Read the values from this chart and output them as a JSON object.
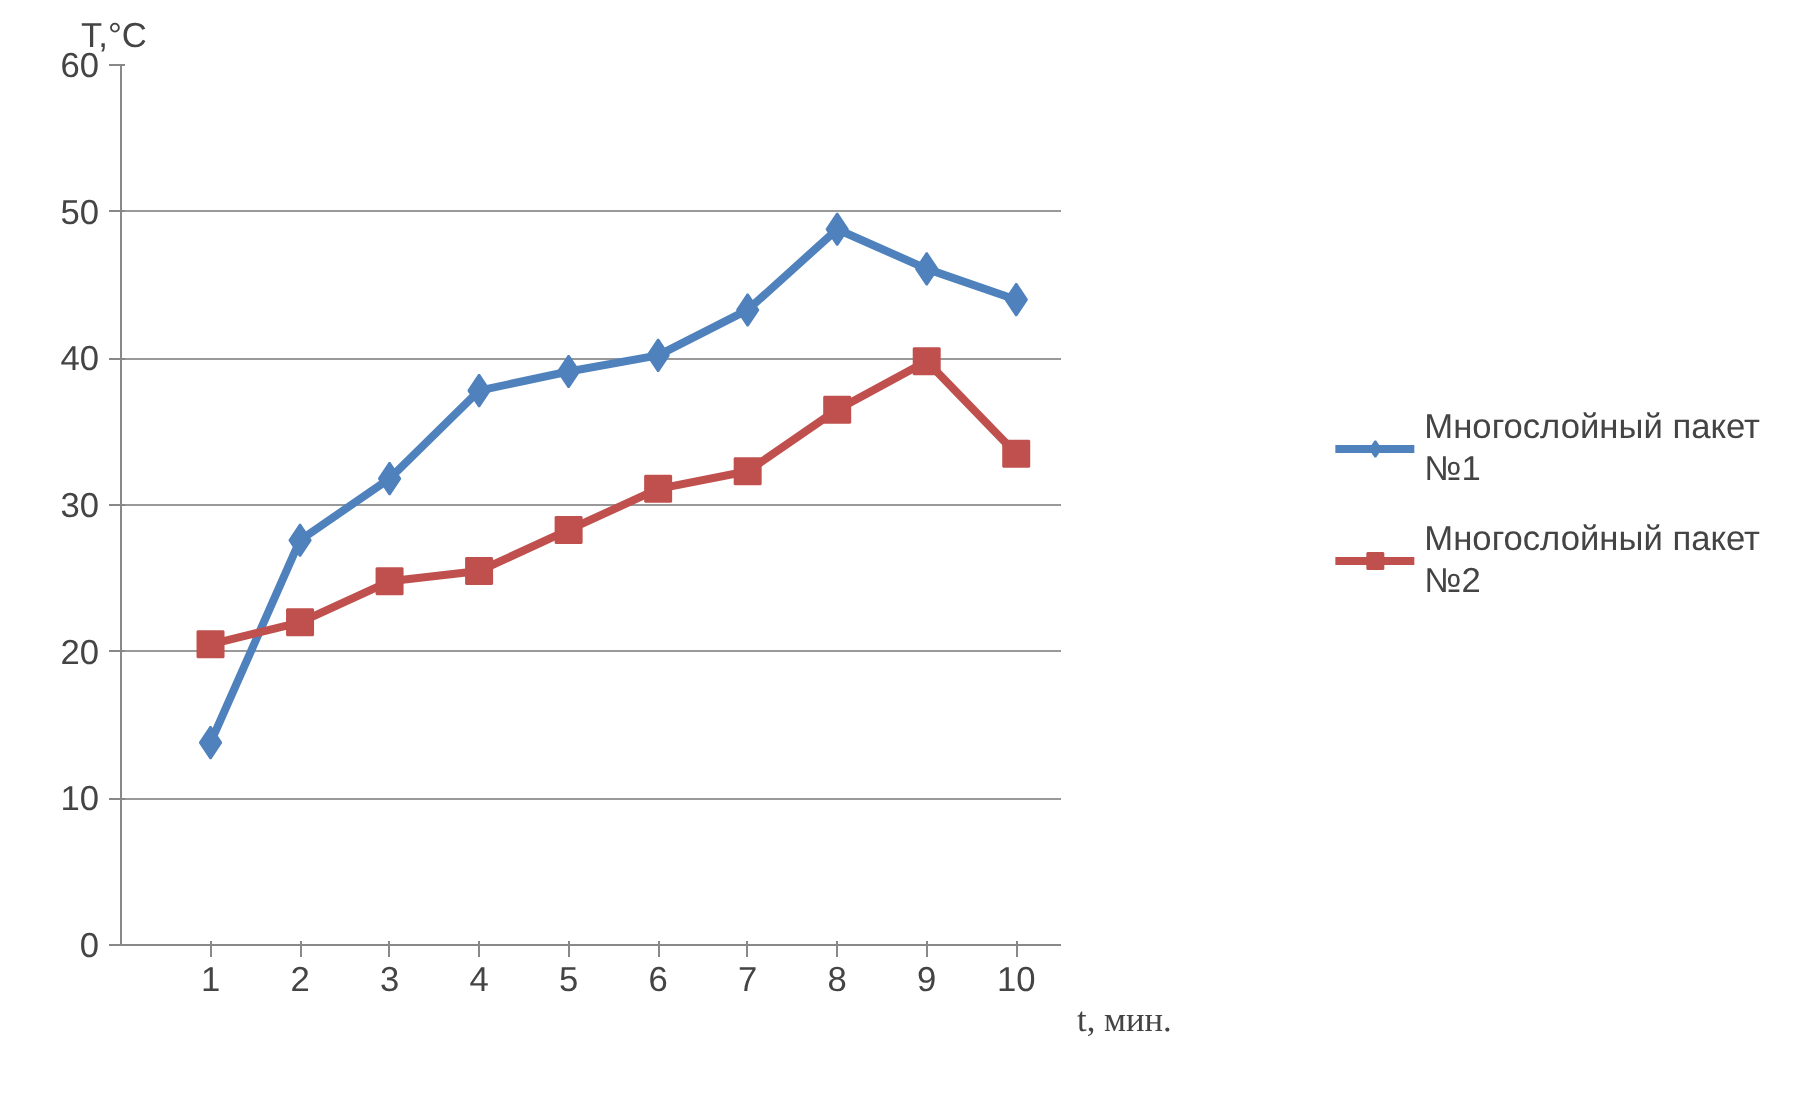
{
  "chart_data": {
    "type": "line",
    "xlabel": "t, мин.",
    "ylabel": "T,°C",
    "categories": [
      "1",
      "2",
      "3",
      "4",
      "5",
      "6",
      "7",
      "8",
      "9",
      "10"
    ],
    "ylim": [
      0,
      60
    ],
    "yticks": [
      0,
      10,
      20,
      30,
      40,
      50,
      60
    ],
    "grid": "y",
    "legend": "right",
    "line_style": "solid",
    "series": [
      {
        "name": "Многослойный пакет №1",
        "color": "#4f81bd",
        "marker": "diamond",
        "values": [
          13.8,
          27.6,
          31.8,
          37.8,
          39.1,
          40.2,
          43.3,
          48.8,
          46.1,
          44.0
        ]
      },
      {
        "name": "Многослойный пакет №2",
        "color": "#c0504d",
        "marker": "square",
        "values": [
          20.5,
          22.0,
          24.8,
          25.5,
          28.3,
          31.1,
          32.3,
          36.5,
          39.8,
          33.5
        ]
      }
    ]
  }
}
